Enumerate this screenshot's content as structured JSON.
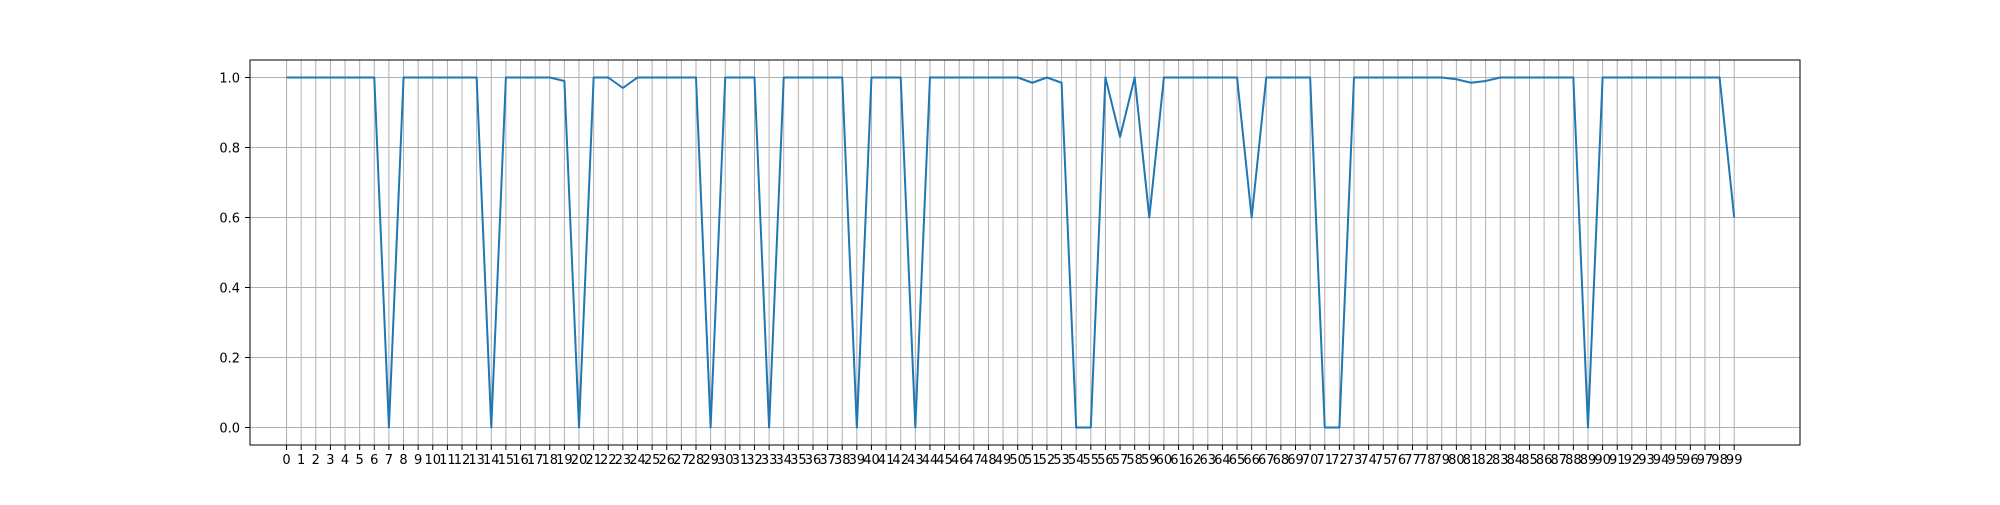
{
  "chart_data": {
    "type": "line",
    "title": "",
    "xlabel": "",
    "ylabel": "",
    "x": [
      0,
      1,
      2,
      3,
      4,
      5,
      6,
      7,
      8,
      9,
      10,
      11,
      12,
      13,
      14,
      15,
      16,
      17,
      18,
      19,
      20,
      21,
      22,
      23,
      24,
      25,
      26,
      27,
      28,
      29,
      30,
      31,
      32,
      33,
      34,
      35,
      36,
      37,
      38,
      39,
      40,
      41,
      42,
      43,
      44,
      45,
      46,
      47,
      48,
      49,
      50,
      51,
      52,
      53,
      54,
      55,
      56,
      57,
      58,
      59,
      60,
      61,
      62,
      63,
      64,
      65,
      66,
      67,
      68,
      69,
      70,
      71,
      72,
      73,
      74,
      75,
      76,
      77,
      78,
      79,
      80,
      81,
      82,
      83,
      84,
      85,
      86,
      87,
      88,
      89,
      90,
      91,
      92,
      93,
      94,
      95,
      96,
      97,
      98,
      99
    ],
    "xticklabels": [
      "0",
      "1",
      "2",
      "3",
      "4",
      "5",
      "6",
      "7",
      "8",
      "9",
      "10",
      "11",
      "12",
      "13",
      "14",
      "15",
      "16",
      "17",
      "18",
      "19",
      "20",
      "21",
      "22",
      "23",
      "24",
      "25",
      "26",
      "27",
      "28",
      "29",
      "30",
      "31",
      "32",
      "33",
      "34",
      "35",
      "36",
      "37",
      "38",
      "39",
      "40",
      "41",
      "42",
      "43",
      "44",
      "45",
      "46",
      "47",
      "48",
      "49",
      "50",
      "51",
      "52",
      "53",
      "54",
      "55",
      "56",
      "57",
      "58",
      "59",
      "60",
      "61",
      "62",
      "63",
      "64",
      "65",
      "66",
      "67",
      "68",
      "69",
      "70",
      "71",
      "72",
      "73",
      "74",
      "75",
      "76",
      "77",
      "78",
      "79",
      "80",
      "81",
      "82",
      "83",
      "84",
      "85",
      "86",
      "87",
      "88",
      "89",
      "90",
      "91",
      "92",
      "93",
      "94",
      "95",
      "96",
      "97",
      "98",
      "99"
    ],
    "series": [
      {
        "color": "#1f77b4",
        "values": [
          1,
          1,
          1,
          1,
          1,
          1,
          1,
          0,
          1,
          1,
          1,
          1,
          1,
          1,
          0,
          1,
          1,
          1,
          1,
          0.99,
          0,
          1,
          1,
          0.97,
          1,
          1,
          1,
          1,
          1,
          0,
          1,
          1,
          1,
          0,
          1,
          1,
          1,
          1,
          1,
          0,
          1,
          1,
          1,
          0,
          1,
          1,
          1,
          1,
          1,
          1,
          1,
          0.985,
          1,
          0.985,
          0,
          0,
          1,
          0.83,
          1,
          0.6,
          1,
          1,
          1,
          1,
          1,
          1,
          0.6,
          1,
          1,
          1,
          1,
          0,
          0,
          1,
          1,
          1,
          1,
          1,
          1,
          1,
          0.995,
          0.985,
          0.99,
          1,
          1,
          1,
          1,
          1,
          1,
          0,
          1,
          1,
          1,
          1,
          1,
          1,
          1,
          1,
          1,
          0.6
        ]
      }
    ],
    "xlim": [
      -2.5,
      103.5
    ],
    "ylim": [
      -0.05,
      1.05
    ],
    "yticks": [
      0.0,
      0.2,
      0.4,
      0.6,
      0.8,
      1.0
    ],
    "yticklabels": [
      "0.0",
      "0.2",
      "0.4",
      "0.6",
      "0.8",
      "1.0"
    ],
    "grid": true,
    "grid_color": "#b0b0b0",
    "legend": "none"
  }
}
